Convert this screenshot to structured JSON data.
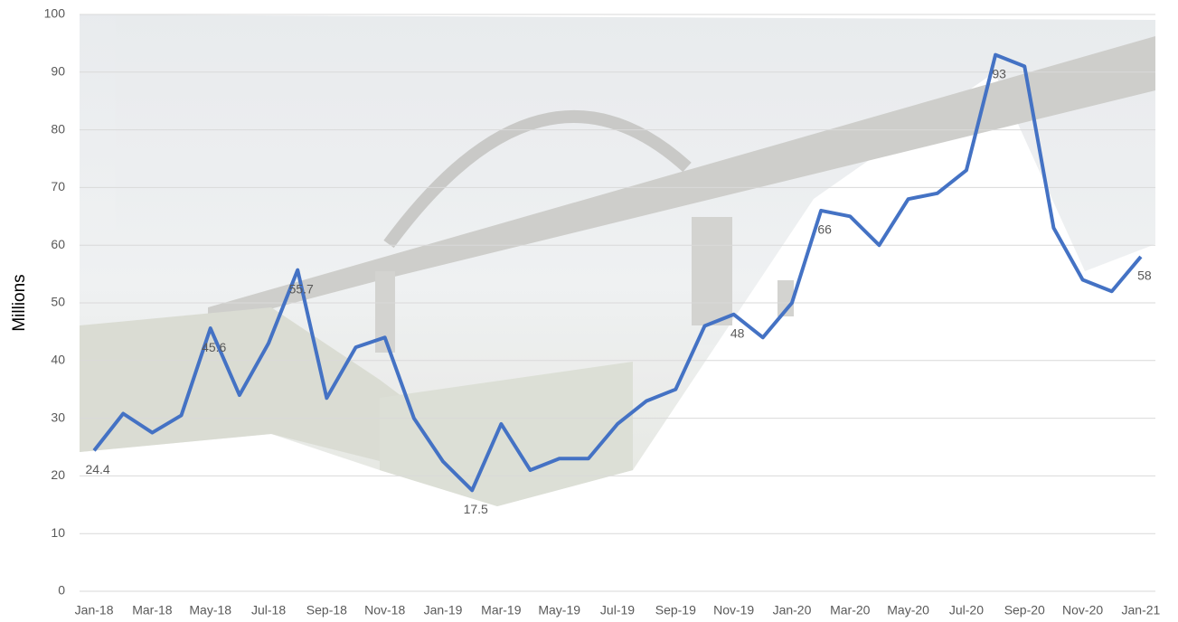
{
  "chart_data": {
    "type": "line",
    "y_axis_label": "Millions",
    "categories": [
      "Jan-18",
      null,
      "Mar-18",
      null,
      "May-18",
      null,
      "Jul-18",
      null,
      "Sep-18",
      null,
      "Nov-18",
      null,
      "Jan-19",
      null,
      "Mar-19",
      null,
      "May-19",
      null,
      "Jul-19",
      null,
      "Sep-19",
      null,
      "Nov-19",
      null,
      "Jan-20",
      null,
      "Mar-20",
      null,
      "May-20",
      null,
      "Jul-20",
      null,
      "Sep-20",
      null,
      "Nov-20",
      null,
      "Jan-21"
    ],
    "series": [
      {
        "color": "#4472c4",
        "values": [
          24.4,
          30.8,
          27.5,
          30.5,
          45.6,
          34,
          43,
          55.7,
          33.5,
          42.3,
          44,
          30,
          22.5,
          17.5,
          29,
          21,
          23,
          23,
          29,
          33,
          35,
          46,
          48,
          44,
          50,
          66,
          65,
          60,
          68,
          69,
          73,
          93,
          91,
          63,
          54,
          52,
          58
        ],
        "value_labels": [
          "24.4",
          null,
          null,
          null,
          "45.6",
          null,
          null,
          "55.7",
          null,
          null,
          null,
          null,
          null,
          "17.5",
          null,
          null,
          null,
          null,
          null,
          null,
          null,
          null,
          "48",
          null,
          null,
          "66",
          null,
          null,
          null,
          null,
          null,
          "93",
          null,
          null,
          null,
          null,
          "58"
        ]
      }
    ],
    "ylim": [
      0,
      100
    ],
    "yticks": [
      0,
      10,
      20,
      30,
      40,
      50,
      60,
      70,
      80,
      90,
      100
    ],
    "grid": true
  }
}
